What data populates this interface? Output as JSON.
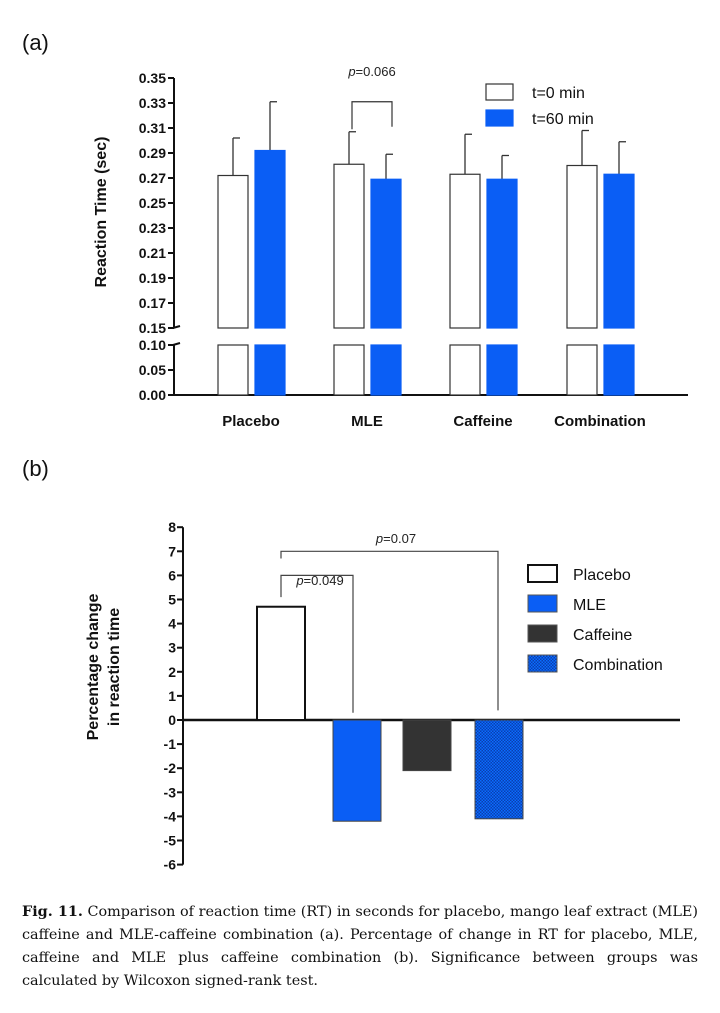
{
  "chart_data": [
    {
      "panel_label": "(a)",
      "type": "bar",
      "categories": [
        "Placebo",
        "MLE",
        "Caffeine",
        "Combination"
      ],
      "series": [
        {
          "name": "t=0 min",
          "color": "#ffffff",
          "values": [
            0.272,
            0.281,
            0.273,
            0.28
          ],
          "error_upper": [
            0.302,
            0.307,
            0.305,
            0.308
          ]
        },
        {
          "name": "t=60 min",
          "color": "#0a5ef5",
          "values": [
            0.292,
            0.269,
            0.269,
            0.273
          ],
          "error_upper": [
            0.331,
            0.289,
            0.288,
            0.299
          ]
        }
      ],
      "ylabel": "Reaction Time (sec)",
      "xlabel": "",
      "ylim": [
        0,
        0.35
      ],
      "axis_break": [
        0.1,
        0.15
      ],
      "yticks_lower": [
        "0.00",
        "0.05",
        "0.10"
      ],
      "yticks_upper": [
        "0.15",
        "0.17",
        "0.19",
        "0.21",
        "0.23",
        "0.25",
        "0.27",
        "0.29",
        "0.31",
        "0.33",
        "0.35"
      ],
      "legend_position": "top-right",
      "annotations": [
        {
          "text_italic": "p",
          "text": "=0.066",
          "between": [
            "MLE t=0 min",
            "MLE t=60 min"
          ]
        }
      ]
    },
    {
      "panel_label": "(b)",
      "type": "bar",
      "categories": [
        "Placebo",
        "MLE",
        "Caffeine",
        "Combination"
      ],
      "values": [
        4.7,
        -4.2,
        -2.1,
        -4.1
      ],
      "colors": [
        "#ffffff",
        "#0a5ef5",
        "#333333",
        "#0a3fb0"
      ],
      "patterns": [
        "none",
        "none",
        "none",
        "checker"
      ],
      "ylabel_lines": [
        "Percentage change",
        "in reaction time"
      ],
      "ylim": [
        -6,
        8
      ],
      "yticks": [
        "8",
        "7",
        "6",
        "5",
        "4",
        "3",
        "2",
        "1",
        "0",
        "-1",
        "-2",
        "-3",
        "-4",
        "-5",
        "-6"
      ],
      "legend_position": "right",
      "annotations": [
        {
          "text_italic": "p",
          "text": "=0.049",
          "between": [
            "Placebo",
            "MLE"
          ]
        },
        {
          "text_italic": "p",
          "text": "=0.07",
          "between": [
            "Placebo",
            "Combination"
          ]
        }
      ]
    }
  ],
  "caption": {
    "label": "Fig. 11.",
    "text": " Comparison of reaction time (RT) in seconds for placebo, mango leaf extract (MLE) caffeine and MLE-caffeine combination (a). Percentage of change in RT for placebo, MLE, caffeine and MLE plus caffeine combination (b). Significance between groups was calculated by Wilcoxon signed-rank test."
  }
}
